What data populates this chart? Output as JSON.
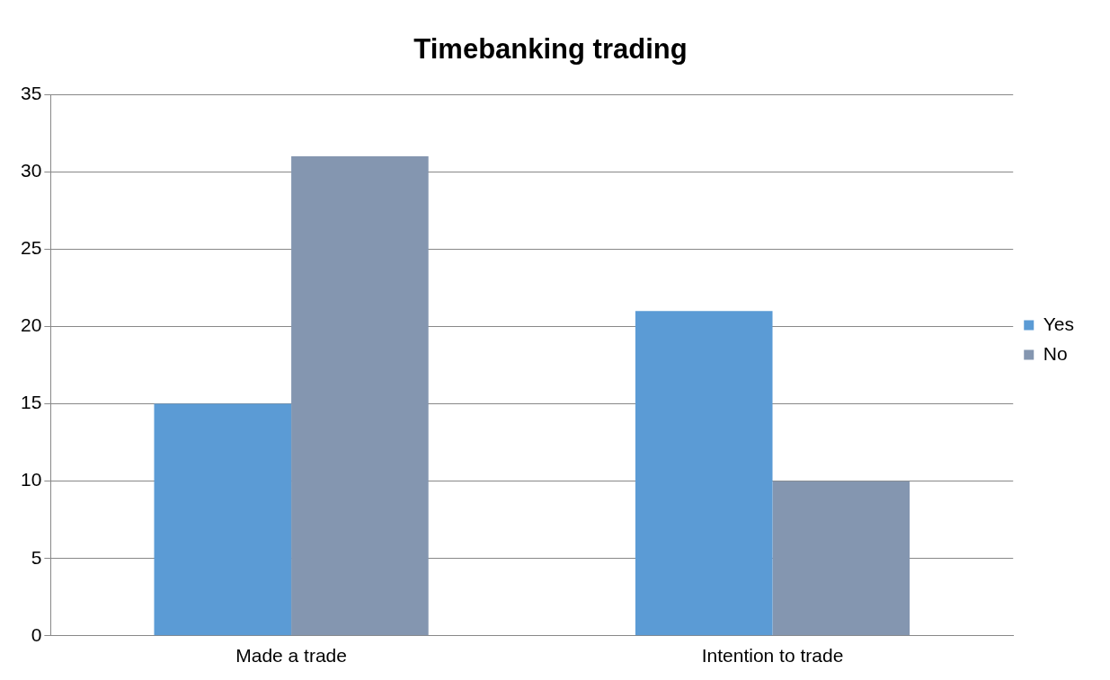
{
  "chart_data": {
    "type": "bar",
    "title": "Timebanking trading",
    "categories": [
      "Made a trade",
      "Intention to trade"
    ],
    "series": [
      {
        "name": "Yes",
        "color": "#5b9bd5",
        "values": [
          15,
          21
        ]
      },
      {
        "name": "No",
        "color": "#8496b0",
        "values": [
          31,
          10
        ]
      }
    ],
    "ylim": [
      0,
      35
    ],
    "yticks": [
      0,
      5,
      10,
      15,
      20,
      25,
      30,
      35
    ],
    "grid": "y",
    "legend": "right"
  }
}
